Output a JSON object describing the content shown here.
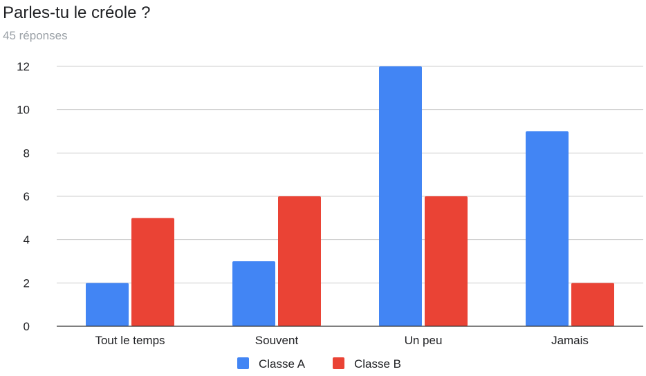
{
  "title": "Parles-tu le créole ?",
  "subtitle": "45 réponses",
  "colors": {
    "series_a": "#4285f4",
    "series_b": "#ea4335",
    "grid": "#cccccc",
    "axis": "#333333",
    "text": "#202124",
    "subtitle": "#9aa0a6"
  },
  "chart_data": {
    "type": "bar",
    "title": "Parles-tu le créole ?",
    "subtitle": "45 réponses",
    "xlabel": "",
    "ylabel": "",
    "categories": [
      "Tout le temps",
      "Souvent",
      "Un peu",
      "Jamais"
    ],
    "series": [
      {
        "name": "Classe A",
        "color": "#4285f4",
        "values": [
          2,
          3,
          12,
          9
        ]
      },
      {
        "name": "Classe B",
        "color": "#ea4335",
        "values": [
          5,
          6,
          6,
          2
        ]
      }
    ],
    "ylim": [
      0,
      12
    ],
    "yticks": [
      0,
      2,
      4,
      6,
      8,
      10,
      12
    ],
    "grid": true,
    "legend_position": "bottom"
  }
}
